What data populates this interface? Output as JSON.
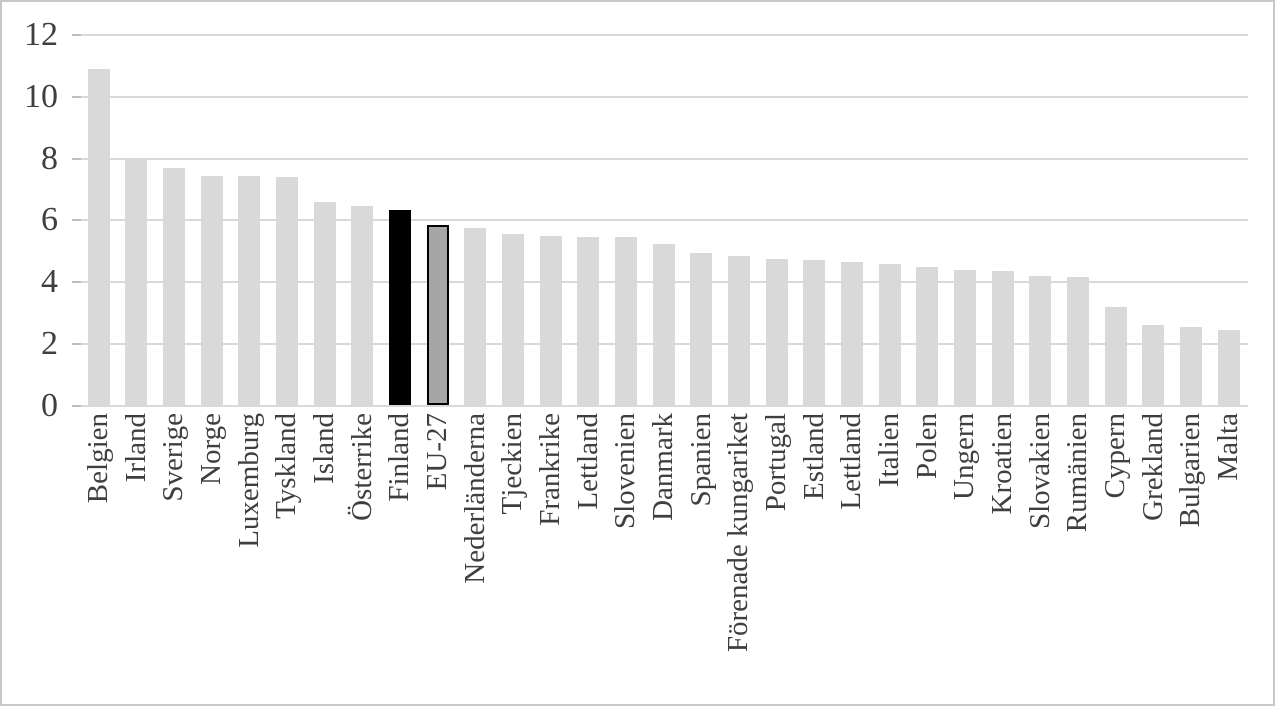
{
  "colors": {
    "background": "#ffffff",
    "frame_border": "#c8c8c8",
    "gridline": "#d9d9d9",
    "tick_mark": "#bfbfbf",
    "axis_text": "#3f3f3f"
  },
  "chart_data": {
    "type": "bar",
    "title": "",
    "xlabel": "",
    "ylabel": "",
    "ylim": [
      0,
      12
    ],
    "yticks": [
      0,
      2,
      4,
      6,
      8,
      10,
      12
    ],
    "grid": "horizontal",
    "legend": "none",
    "categories": [
      "Belgien",
      "Irland",
      "Sverige",
      "Norge",
      "Luxemburg",
      "Tyskland",
      "Island",
      "Österrike",
      "Finland",
      "EU-27",
      "Nederländerna",
      "Tjeckien",
      "Frankrike",
      "Lettland",
      "Slovenien",
      "Danmark",
      "Spanien",
      "Förenade kungariket",
      "Portugal",
      "Estland",
      "Lettland",
      "Italien",
      "Polen",
      "Ungern",
      "Kroatien",
      "Slovakien",
      "Rumänien",
      "Cypern",
      "Grekland",
      "Bulgarien",
      "Malta"
    ],
    "values": [
      10.9,
      8.0,
      7.7,
      7.45,
      7.45,
      7.4,
      6.6,
      6.45,
      6.35,
      5.85,
      5.75,
      5.55,
      5.5,
      5.45,
      5.45,
      5.25,
      4.95,
      4.85,
      4.75,
      4.7,
      4.65,
      4.6,
      4.5,
      4.4,
      4.35,
      4.2,
      4.15,
      3.2,
      2.6,
      2.55,
      2.45
    ],
    "default_bar_color": "#d9d9d9",
    "highlighted_bars": [
      {
        "index": 8,
        "category": "Finland",
        "fill": "#000000"
      },
      {
        "index": 9,
        "category": "EU-27",
        "fill": "#a6a6a6",
        "border": "#000000"
      }
    ]
  }
}
